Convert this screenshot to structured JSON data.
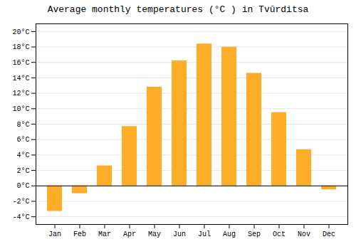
{
  "chart_data": {
    "type": "bar",
    "title": "Average monthly temperatures (°C ) in Tvŭrditsa",
    "categories": [
      "Jan",
      "Feb",
      "Mar",
      "Apr",
      "May",
      "Jun",
      "Jul",
      "Aug",
      "Sep",
      "Oct",
      "Nov",
      "Dec"
    ],
    "values": [
      -3.3,
      -1.0,
      2.6,
      7.7,
      12.8,
      16.2,
      18.4,
      18.0,
      14.6,
      9.5,
      4.7,
      -0.5
    ],
    "color": "#FDAD27",
    "ylim": [
      -5,
      21
    ],
    "yticks": [
      {
        "value": -4,
        "label": "-4°C"
      },
      {
        "value": -2,
        "label": "-2°C"
      },
      {
        "value": 0,
        "label": "0°C"
      },
      {
        "value": 2,
        "label": "2°C"
      },
      {
        "value": 4,
        "label": "4°C"
      },
      {
        "value": 6,
        "label": "6°C"
      },
      {
        "value": 8,
        "label": "8°C"
      },
      {
        "value": 10,
        "label": "10°C"
      },
      {
        "value": 12,
        "label": "12°C"
      },
      {
        "value": 14,
        "label": "14°C"
      },
      {
        "value": 16,
        "label": "16°C"
      },
      {
        "value": 18,
        "label": "18°C"
      },
      {
        "value": 20,
        "label": "20°C"
      }
    ],
    "grid": true
  }
}
